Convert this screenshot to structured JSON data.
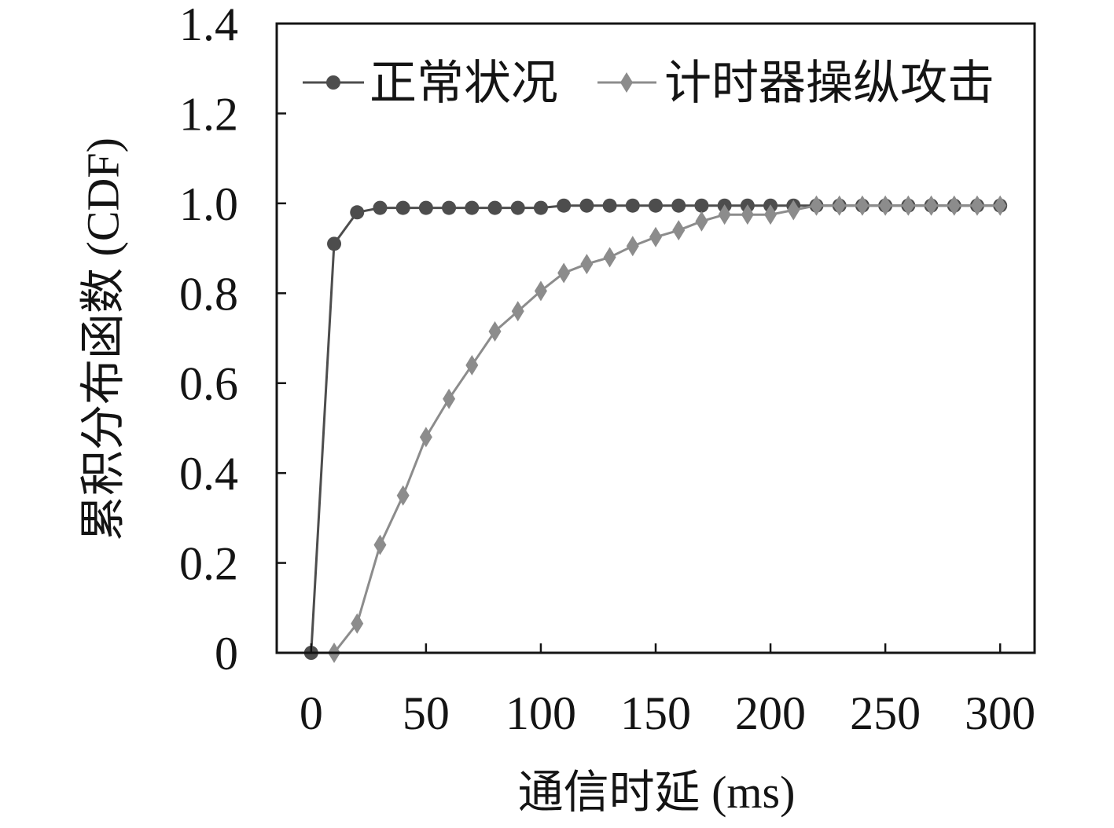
{
  "chart_data": {
    "type": "line",
    "xlabel": "通信时延 (ms)",
    "ylabel": "累积分布函数 (CDF)",
    "xlim": [
      -15,
      315
    ],
    "ylim": [
      0,
      1.4
    ],
    "xticks": [
      0,
      50,
      100,
      150,
      200,
      250,
      300
    ],
    "xtick_labels": [
      "0",
      "50",
      "100",
      "150",
      "200",
      "250",
      "300"
    ],
    "yticks": [
      0,
      0.2,
      0.4,
      0.6,
      0.8,
      1.0,
      1.2,
      1.4
    ],
    "ytick_labels": [
      "0",
      "0.2",
      "0.4",
      "0.6",
      "0.8",
      "1.0",
      "1.2",
      "1.4"
    ],
    "grid": false,
    "legend": {
      "position": "top"
    },
    "x": [
      0,
      10,
      20,
      30,
      40,
      50,
      60,
      70,
      80,
      90,
      100,
      110,
      120,
      130,
      140,
      150,
      160,
      170,
      180,
      190,
      200,
      210,
      220,
      230,
      240,
      250,
      260,
      270,
      280,
      290,
      300
    ],
    "series": [
      {
        "name": "正常状况",
        "color": "#4d4d4d",
        "marker": "circle",
        "values": [
          0,
          0.91,
          0.98,
          0.99,
          0.99,
          0.99,
          0.99,
          0.99,
          0.99,
          0.99,
          0.99,
          0.995,
          0.995,
          0.995,
          0.995,
          0.995,
          0.995,
          0.995,
          0.995,
          0.995,
          0.995,
          0.995,
          0.995,
          0.995,
          0.995,
          0.995,
          0.995,
          0.995,
          0.995,
          0.995,
          0.995
        ]
      },
      {
        "name": "计时器操纵攻击",
        "color": "#8c8c8c",
        "marker": "diamond",
        "values": [
          null,
          0,
          0.065,
          0.24,
          0.35,
          0.48,
          0.565,
          0.64,
          0.715,
          0.76,
          0.805,
          0.845,
          0.865,
          0.88,
          0.905,
          0.925,
          0.94,
          0.96,
          0.975,
          0.975,
          0.975,
          0.985,
          0.995,
          0.995,
          0.995,
          0.995,
          0.995,
          0.995,
          0.995,
          0.995,
          0.995
        ]
      }
    ]
  }
}
